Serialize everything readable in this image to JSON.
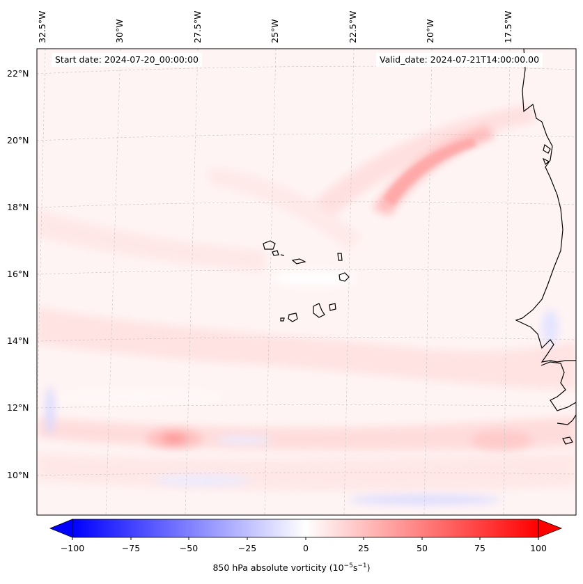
{
  "header": {
    "start_date_text": "Start date: 2024-07-20_00:00:00",
    "valid_date_text": "Valid_date: 2024-07-21T14:00:00.00"
  },
  "map": {
    "longitude_labels": [
      "32.5°W",
      "30°W",
      "27.5°W",
      "25°W",
      "22.5°W",
      "20°W",
      "17.5°W"
    ],
    "latitude_labels": [
      "22°N",
      "20°N",
      "18°N",
      "16°N",
      "14°N",
      "12°N",
      "10°N"
    ],
    "field_description": "850 hPa absolute vorticity",
    "features": [
      "Cabo Verde islands",
      "West African coastline"
    ]
  },
  "colorbar": {
    "label_text": "850 hPa absolute vorticity (10",
    "label_exp1": "−5",
    "label_mid": "s",
    "label_exp2": "−1",
    "label_end": ")",
    "ticks": [
      "−100",
      "−75",
      "−50",
      "−25",
      "0",
      "25",
      "50",
      "75",
      "100"
    ],
    "vmin": -100,
    "vmax": 100,
    "colormap": "bwr",
    "extend": "both"
  },
  "colors": {
    "negative": "#0000ff",
    "zero": "#ffffff",
    "positive": "#ff0000",
    "coastline": "#000000",
    "gridline": "#c8c8c8"
  }
}
